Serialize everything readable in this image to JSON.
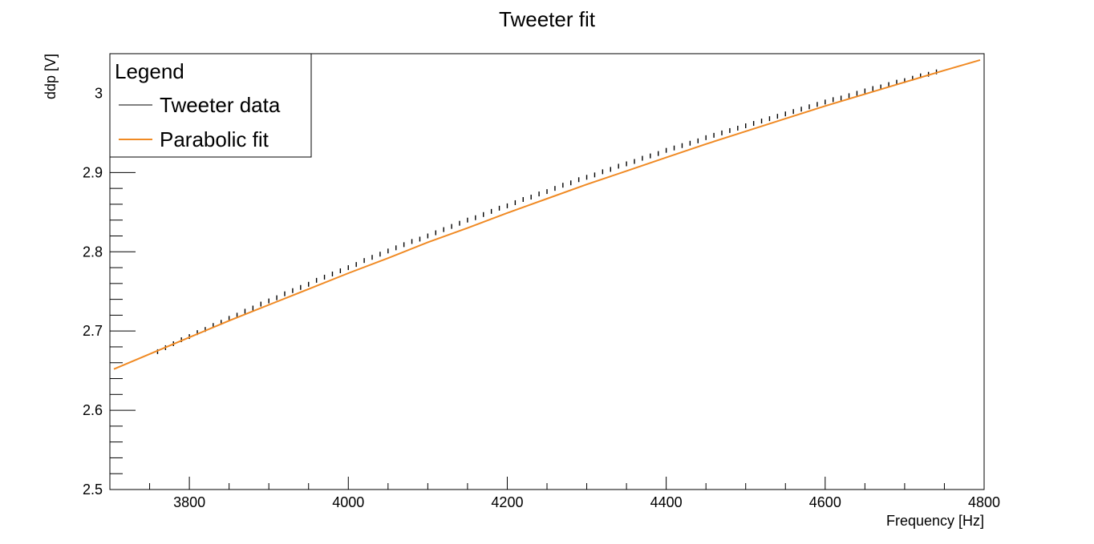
{
  "chart_data": {
    "type": "line",
    "title": "Tweeter fit",
    "xlabel": "Frequency [Hz]",
    "ylabel": "ddp [V]",
    "xlim": [
      3700,
      4800
    ],
    "ylim": [
      2.5,
      3.05
    ],
    "x_ticks": [
      3800,
      4000,
      4200,
      4400,
      4600,
      4800
    ],
    "y_ticks": [
      2.5,
      2.6,
      2.7,
      2.8,
      2.9,
      3.0
    ],
    "y_tick_labels": [
      "2.5",
      "2.6",
      "2.7",
      "2.8",
      "2.9",
      "3"
    ],
    "grid": false,
    "legend": {
      "title": "Legend",
      "position": "top-left",
      "entries": [
        {
          "label": "Tweeter data",
          "color": "#000000"
        },
        {
          "label": "Parabolic fit",
          "color": "#f08a24"
        }
      ]
    },
    "series": [
      {
        "name": "Tweeter data",
        "color": "#000000",
        "x": [
          3760,
          3770,
          3780,
          3790,
          3800,
          3810,
          3820,
          3830,
          3840,
          3850,
          3860,
          3870,
          3880,
          3890,
          3900,
          3910,
          3920,
          3930,
          3940,
          3950,
          3960,
          3970,
          3980,
          3990,
          4000,
          4010,
          4020,
          4030,
          4040,
          4050,
          4060,
          4070,
          4080,
          4090,
          4100,
          4110,
          4120,
          4130,
          4140,
          4150,
          4160,
          4170,
          4180,
          4190,
          4200,
          4210,
          4220,
          4230,
          4240,
          4250,
          4260,
          4270,
          4280,
          4290,
          4300,
          4310,
          4320,
          4330,
          4340,
          4350,
          4360,
          4370,
          4380,
          4390,
          4400,
          4410,
          4420,
          4430,
          4440,
          4450,
          4460,
          4470,
          4480,
          4490,
          4500,
          4510,
          4520,
          4530,
          4540,
          4550,
          4560,
          4570,
          4580,
          4590,
          4600,
          4610,
          4620,
          4630,
          4640,
          4650,
          4660,
          4670,
          4680,
          4690,
          4700,
          4710,
          4720,
          4730,
          4740
        ],
        "y": [
          2.674,
          2.679,
          2.684,
          2.689,
          2.693,
          2.698,
          2.702,
          2.707,
          2.711,
          2.716,
          2.72,
          2.725,
          2.729,
          2.734,
          2.738,
          2.742,
          2.747,
          2.751,
          2.755,
          2.759,
          2.764,
          2.768,
          2.772,
          2.776,
          2.78,
          2.784,
          2.789,
          2.793,
          2.797,
          2.801,
          2.805,
          2.809,
          2.813,
          2.816,
          2.82,
          2.824,
          2.828,
          2.832,
          2.836,
          2.84,
          2.843,
          2.847,
          2.851,
          2.855,
          2.858,
          2.862,
          2.866,
          2.869,
          2.873,
          2.876,
          2.88,
          2.884,
          2.887,
          2.891,
          2.894,
          2.897,
          2.901,
          2.904,
          2.908,
          2.911,
          2.914,
          2.918,
          2.921,
          2.924,
          2.928,
          2.931,
          2.934,
          2.937,
          2.94,
          2.944,
          2.947,
          2.95,
          2.953,
          2.956,
          2.959,
          2.962,
          2.965,
          2.968,
          2.971,
          2.974,
          2.977,
          2.98,
          2.983,
          2.986,
          2.989,
          2.992,
          2.994,
          2.997,
          3.0,
          3.003,
          3.006,
          3.008,
          3.011,
          3.014,
          3.016,
          3.019,
          3.022,
          3.024,
          3.027
        ]
      },
      {
        "name": "Parabolic fit",
        "color": "#f08a24",
        "x": [
          3705,
          3750,
          3800,
          3850,
          3900,
          3950,
          4000,
          4050,
          4100,
          4150,
          4200,
          4250,
          4300,
          4350,
          4400,
          4450,
          4500,
          4550,
          4600,
          4650,
          4700,
          4750,
          4795
        ],
        "y": [
          2.652,
          2.671,
          2.692,
          2.713,
          2.733,
          2.753,
          2.773,
          2.792,
          2.812,
          2.83,
          2.849,
          2.867,
          2.885,
          2.902,
          2.919,
          2.936,
          2.952,
          2.968,
          2.984,
          2.999,
          3.014,
          3.029,
          3.042
        ]
      }
    ]
  }
}
